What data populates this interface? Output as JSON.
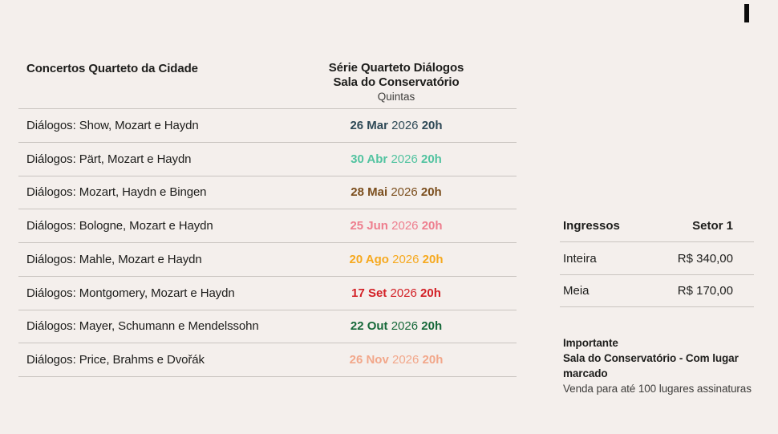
{
  "page": {
    "background": "#f4efec",
    "divider_color": "#c9c4c0"
  },
  "schedule": {
    "title": "Concertos Quarteto da Cidade",
    "series": {
      "name": "Série Quarteto Diálogos",
      "venue": "Sala do Conservatório",
      "weekday": "Quintas"
    },
    "rows": [
      {
        "name": "Diálogos: Show, Mozart e Haydn",
        "day": "26 Mar",
        "year": "2026",
        "time": "20h",
        "color": "#2e4956"
      },
      {
        "name": "Diálogos: Pärt, Mozart e Haydn",
        "day": "30 Abr",
        "year": "2026",
        "time": "20h",
        "color": "#52c3a0"
      },
      {
        "name": "Diálogos: Mozart, Haydn e Bingen",
        "day": "28 Mai",
        "year": "2026",
        "time": "20h",
        "color": "#7b4e1d"
      },
      {
        "name": "Diálogos: Bologne, Mozart e Haydn",
        "day": "25 Jun",
        "year": "2026",
        "time": "20h",
        "color": "#ee7e8e"
      },
      {
        "name": "Diálogos: Mahle, Mozart e Haydn",
        "day": "20 Ago",
        "year": "2026",
        "time": "20h",
        "color": "#f6a91f"
      },
      {
        "name": "Diálogos: Montgomery, Mozart e Haydn",
        "day": "17 Set",
        "year": "2026",
        "time": "20h",
        "color": "#d32026"
      },
      {
        "name": "Diálogos: Mayer, Schumann e Mendelssohn",
        "day": "22 Out",
        "year": "2026",
        "time": "20h",
        "color": "#17693a"
      },
      {
        "name": "Diálogos: Price, Brahms e Dvořák",
        "day": "26 Nov",
        "year": "2026",
        "time": "20h",
        "color": "#f2a78a"
      }
    ]
  },
  "tickets": {
    "title": "Ingressos",
    "sector": "Setor 1",
    "rows": [
      {
        "type": "Inteira",
        "price": "R$ 340,00"
      },
      {
        "type": "Meia",
        "price": "R$ 170,00"
      }
    ]
  },
  "notes": {
    "title": "Importante",
    "seating": "Sala do Conservatório - Com lugar marcado",
    "sales": "Venda para até 100 lugares assinaturas"
  }
}
